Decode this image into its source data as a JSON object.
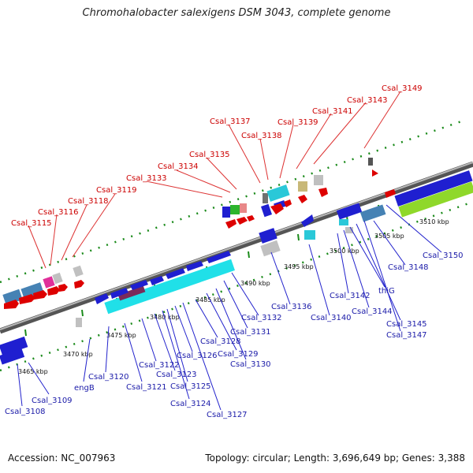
{
  "title": "Chromohalobacter salexigens DSM 3043, complete genome",
  "footer": {
    "accession": "Accession: NC_007963",
    "summary": "Topology: circular; Length: 3,696,649 bp; Genes: 3,388"
  },
  "ticks": [
    "3465 kbp",
    "3470 kbp",
    "3475 kbp",
    "3480 kbp",
    "3485 kbp",
    "3490 kbp",
    "3495 kbp",
    "3500 kbp",
    "3505 kbp",
    "3510 kbp"
  ],
  "forward_labels": [
    "Csal_3115",
    "Csal_3116",
    "Csal_3118",
    "Csal_3119",
    "Csal_3133",
    "Csal_3134",
    "Csal_3135",
    "Csal_3137",
    "Csal_3138",
    "Csal_3139",
    "Csal_3141",
    "Csal_3143",
    "Csal_3149"
  ],
  "reverse_labels": [
    "Csal_3108",
    "Csal_3109",
    "engB",
    "Csal_3120",
    "Csal_3121",
    "Csal_3122",
    "Csal_3123",
    "Csal_3124",
    "Csal_3125",
    "Csal_3126",
    "Csal_3127",
    "Csal_3128",
    "Csal_3129",
    "Csal_3130",
    "Csal_3131",
    "Csal_3132",
    "Csal_3136",
    "Csal_3140",
    "Csal_3142",
    "Csal_3144",
    "thiG",
    "Csal_3145",
    "Csal_3147",
    "Csal_3148",
    "Csal_3150"
  ]
}
